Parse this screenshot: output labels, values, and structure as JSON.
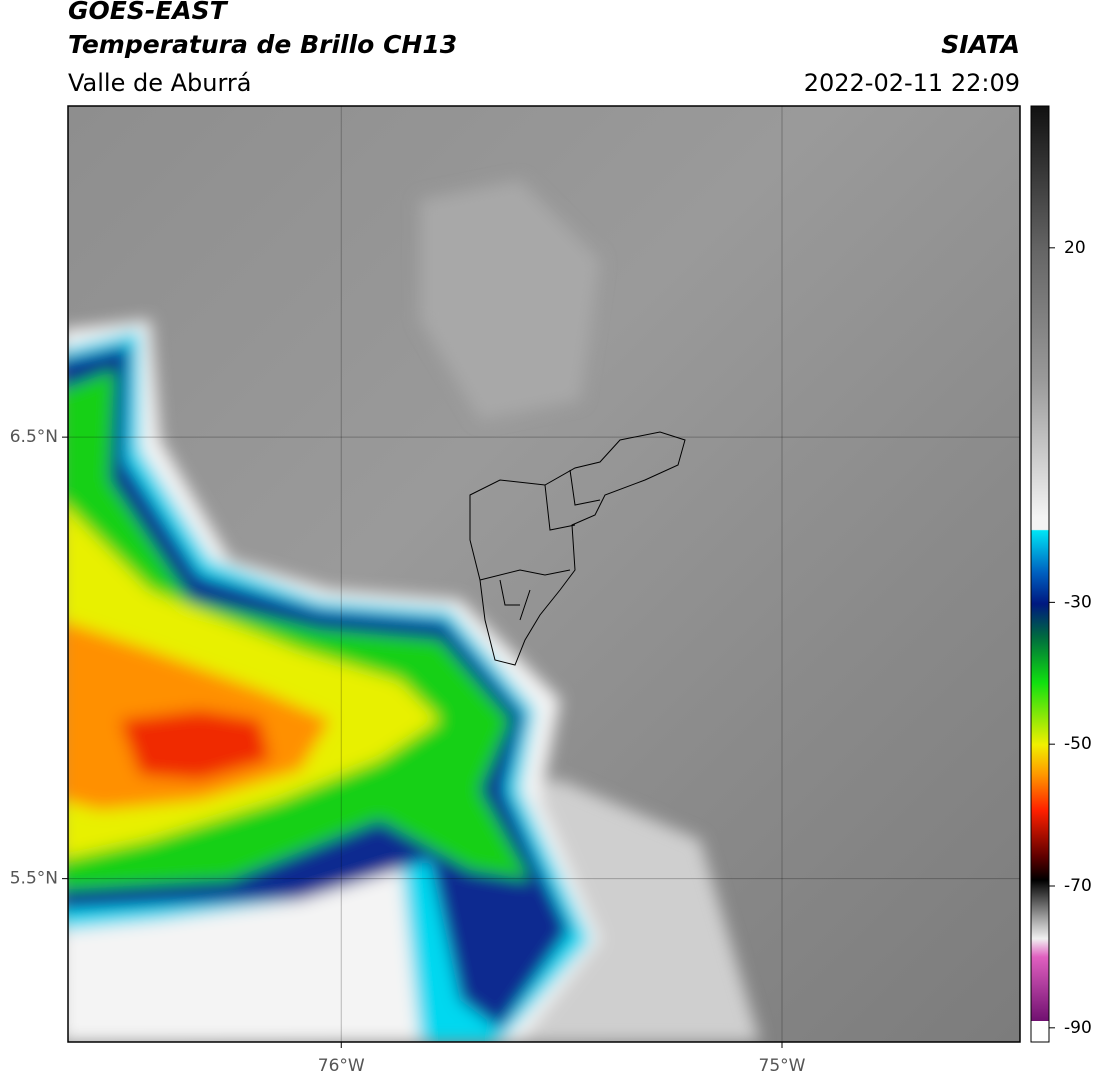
{
  "header": {
    "title": "GOES-EAST",
    "subtitle": "Temperatura de Brillo CH13",
    "source": "SIATA",
    "region": "Valle de Aburrá",
    "datetime": "2022-02-11 22:09"
  },
  "map": {
    "latlim": [
      5.13,
      7.25
    ],
    "lonlim": [
      -76.62,
      -74.46
    ],
    "lat_ticks": [
      {
        "value": 6.5,
        "label": "6.5°N"
      },
      {
        "value": 5.5,
        "label": "5.5°N"
      }
    ],
    "lon_ticks": [
      {
        "value": -76,
        "label": "76°W"
      },
      {
        "value": -75,
        "label": "75°W"
      }
    ],
    "grid": true
  },
  "colorbar": {
    "clim": [
      -92,
      40
    ],
    "ticks": [
      20,
      -30,
      -50,
      -70,
      -90
    ]
  }
}
